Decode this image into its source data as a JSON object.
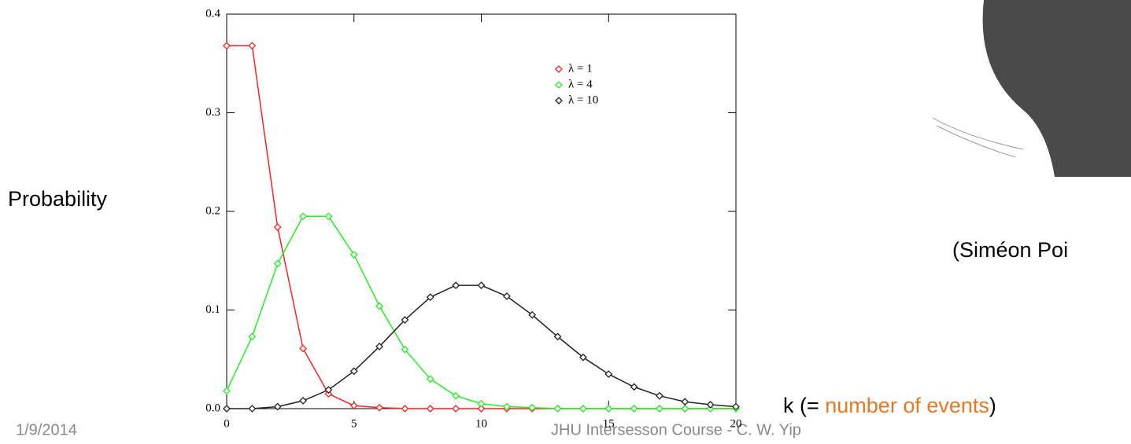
{
  "chart_data": {
    "type": "line",
    "x": [
      0,
      1,
      2,
      3,
      4,
      5,
      6,
      7,
      8,
      9,
      10,
      11,
      12,
      13,
      14,
      15,
      16,
      17,
      18,
      19,
      20
    ],
    "series": [
      {
        "name": "λ = 1",
        "color": "#ff2020",
        "values": [
          0.368,
          0.368,
          0.184,
          0.061,
          0.015,
          0.003,
          0.001,
          0,
          0,
          0,
          0,
          0,
          0,
          0,
          0,
          0,
          0,
          0,
          0,
          0,
          0
        ]
      },
      {
        "name": "λ = 4",
        "color": "#22ee22",
        "values": [
          0.018,
          0.073,
          0.147,
          0.195,
          0.195,
          0.156,
          0.104,
          0.06,
          0.03,
          0.013,
          0.005,
          0.002,
          0.001,
          0,
          0,
          0,
          0,
          0,
          0,
          0,
          0
        ]
      },
      {
        "name": "λ = 10",
        "color": "#222222",
        "values": [
          0,
          0,
          0.002,
          0.008,
          0.019,
          0.038,
          0.063,
          0.09,
          0.113,
          0.125,
          0.125,
          0.114,
          0.095,
          0.073,
          0.052,
          0.035,
          0.022,
          0.013,
          0.007,
          0.004,
          0.002
        ]
      }
    ],
    "xlim": [
      0,
      20
    ],
    "xticks": [
      0,
      5,
      10,
      15,
      20
    ],
    "ylim": [
      0,
      0.4
    ],
    "yticks": [
      {
        "value": 0,
        "label": "0.0"
      },
      0.1,
      0.2,
      0.3,
      0.4
    ],
    "legend": "upper right"
  },
  "slide": {
    "y_label": "Probability",
    "x_label_start": "k (= ",
    "x_label_highlight": "number of events",
    "x_label_end": ")",
    "caption": "(Siméon Poi",
    "date": "1/9/2014",
    "footer": "JHU Intersesson Course - C. W. Yip"
  }
}
